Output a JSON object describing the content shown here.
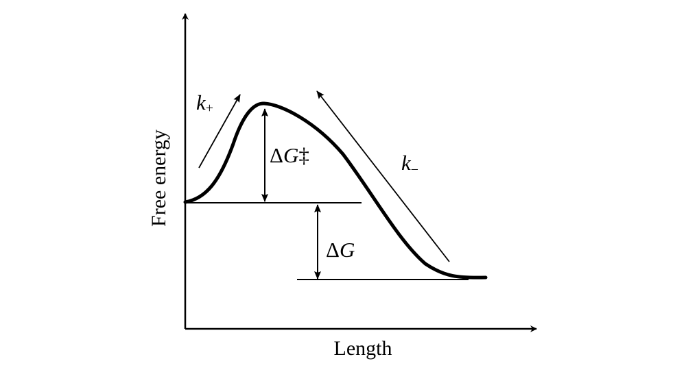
{
  "axes": {
    "y_label": "Free energy",
    "x_label": "Length"
  },
  "labels": {
    "k_plus": {
      "symbol": "k",
      "subscript": "+"
    },
    "k_minus": {
      "symbol": "k",
      "subscript": "−"
    },
    "barrier": {
      "delta": "Δ",
      "symbol": "G",
      "mark": "‡"
    },
    "free_energy_change": {
      "delta": "Δ",
      "symbol": "G"
    }
  },
  "colors": {
    "ink": "#000000",
    "background": "#ffffff"
  }
}
